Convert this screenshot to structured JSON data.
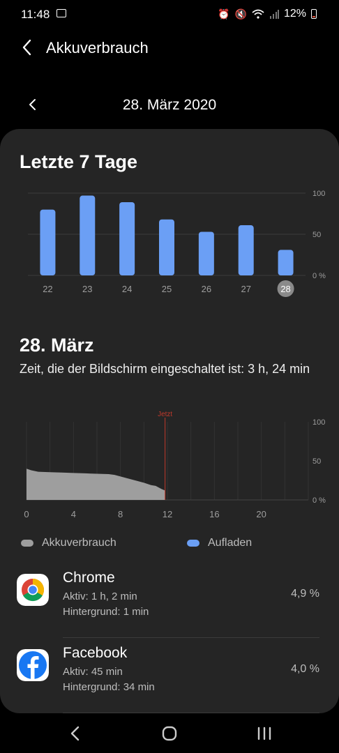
{
  "status_bar": {
    "time": "11:48",
    "battery_text": "12%",
    "icons": [
      "image-icon",
      "alarm-icon",
      "mute-icon",
      "wifi-icon",
      "signal-icon",
      "battery-icon"
    ]
  },
  "header": {
    "title": "Akkuverbrauch"
  },
  "date_nav": {
    "date": "28. März 2020"
  },
  "week": {
    "title": "Letzte 7 Tage",
    "chart_data": {
      "type": "bar",
      "categories": [
        "22",
        "23",
        "24",
        "25",
        "26",
        "27",
        "28"
      ],
      "values": [
        80,
        97,
        89,
        68,
        53,
        61,
        31
      ],
      "ylim": [
        0,
        100
      ],
      "yticks": [
        "100",
        "50",
        "0 %"
      ],
      "selected": "28",
      "color": "#6b9ff5"
    }
  },
  "day": {
    "title": "28. März",
    "subtitle": "Zeit, die der Bildschirm eingeschaltet ist: 3 h, 24 min",
    "chart_data": {
      "type": "area",
      "x": [
        0,
        0.4,
        1,
        2,
        3,
        4,
        5,
        6,
        7,
        7.5,
        8,
        9,
        10,
        10.6,
        11,
        11.5,
        11.8
      ],
      "values": [
        40,
        38,
        36,
        35.5,
        35,
        34.5,
        34,
        33.5,
        33,
        32,
        30,
        26,
        22,
        19,
        18,
        14,
        12
      ],
      "xlim": [
        0,
        24
      ],
      "xticks": [
        "0",
        "4",
        "8",
        "12",
        "16",
        "20"
      ],
      "ylim": [
        0,
        100
      ],
      "yticks": [
        "100",
        "50",
        "0 %"
      ],
      "now_label": "Jetzt",
      "now_x": 11.8,
      "color": "#9e9e9e",
      "now_color": "#c0392b"
    }
  },
  "legend": {
    "usage": {
      "label": "Akkuverbrauch",
      "color": "#9e9e9e"
    },
    "charging": {
      "label": "Aufladen",
      "color": "#6b9ff5"
    }
  },
  "apps": [
    {
      "name": "Chrome",
      "active": "Aktiv: 1 h, 2 min",
      "background": "Hintergrund: 1 min",
      "percent": "4,9 %",
      "icon": "chrome-icon"
    },
    {
      "name": "Facebook",
      "active": "Aktiv: 45 min",
      "background": "Hintergrund: 34 min",
      "percent": "4,0 %",
      "icon": "facebook-icon"
    }
  ],
  "nav": {
    "icons": [
      "back-icon",
      "home-icon",
      "recents-icon"
    ]
  }
}
